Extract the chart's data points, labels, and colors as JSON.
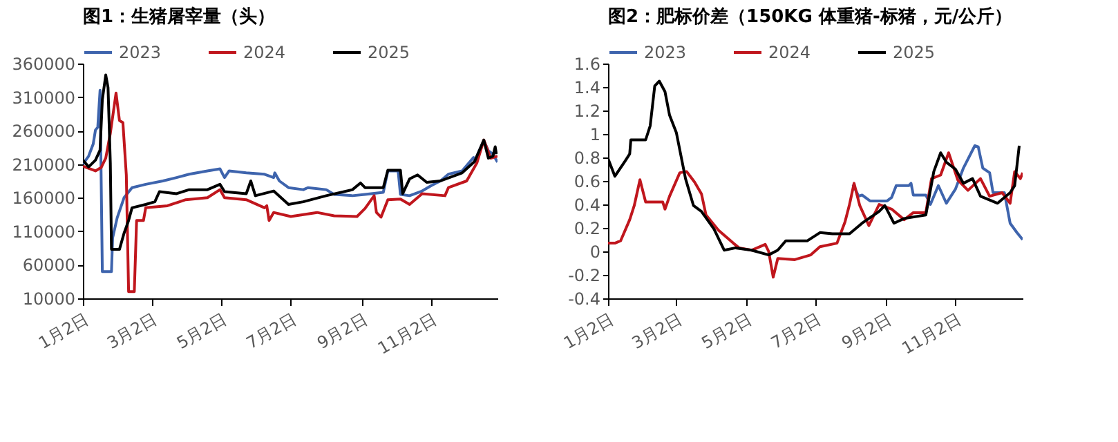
{
  "chart_data": [
    {
      "type": "line",
      "title": "图1：生猪屠宰量（头）",
      "legend": "top",
      "xlim": [
        "--01-02",
        "--12-30"
      ],
      "xticks": [
        {
          "value": "--01-02",
          "label": "1月2日"
        },
        {
          "value": "--03-02",
          "label": "3月2日"
        },
        {
          "value": "--05-02",
          "label": "5月2日"
        },
        {
          "value": "--07-02",
          "label": "7月2日"
        },
        {
          "value": "--09-02",
          "label": "9月2日"
        },
        {
          "value": "--11-02",
          "label": "11月2日"
        }
      ],
      "ylim": [
        10000,
        360000
      ],
      "yticks": [
        10000,
        60000,
        110000,
        160000,
        210000,
        260000,
        310000,
        360000
      ],
      "series": [
        {
          "name": "2023",
          "color": "#3e64ad",
          "x": [
            "--01-02",
            "--01-07",
            "--01-11",
            "--01-13",
            "--01-15",
            "--01-17",
            "--01-19",
            "--01-27",
            "--01-28",
            "--02-01",
            "--02-07",
            "--02-14",
            "--02-26",
            "--03-12",
            "--03-24",
            "--04-04",
            "--04-20",
            "--05-01",
            "--05-05",
            "--05-09",
            "--05-24",
            "--06-09",
            "--06-17",
            "--06-18",
            "--06-22",
            "--06-30",
            "--07-13",
            "--07-17",
            "--08-02",
            "--08-09",
            "--08-25",
            "--09-05",
            "--09-21",
            "--09-25",
            "--10-04",
            "--10-06",
            "--10-14",
            "--10-25",
            "--11-02",
            "--11-10",
            "--11-17",
            "--11-29",
            "--12-09",
            "--12-10",
            "--12-18",
            "--12-22",
            "--12-26",
            "--12-30"
          ],
          "values": [
            210000,
            222000,
            240000,
            261000,
            265000,
            320000,
            50000,
            50000,
            100000,
            130000,
            160000,
            175000,
            180000,
            185000,
            190000,
            195000,
            200000,
            203000,
            190000,
            200000,
            197000,
            195000,
            190000,
            197000,
            185000,
            175000,
            172000,
            175000,
            172000,
            165000,
            163000,
            165000,
            168000,
            200000,
            200000,
            165000,
            163000,
            170000,
            178000,
            185000,
            195000,
            200000,
            220000,
            215000,
            245000,
            230000,
            225000,
            213000
          ]
        },
        {
          "name": "2024",
          "color": "#c0161d",
          "x": [
            "--01-02",
            "--01-13",
            "--01-18",
            "--01-22",
            "--01-26",
            "--01-31",
            "--02-03",
            "--02-06",
            "--02-09",
            "--02-11",
            "--02-16",
            "--02-18",
            "--02-24",
            "--02-26",
            "--03-16",
            "--04-01",
            "--04-20",
            "--05-01",
            "--05-05",
            "--05-24",
            "--06-09",
            "--06-11",
            "--06-13",
            "--06-17",
            "--07-02",
            "--07-25",
            "--08-09",
            "--08-29",
            "--09-05",
            "--09-13",
            "--09-15",
            "--09-19",
            "--09-25",
            "--10-06",
            "--10-14",
            "--10-25",
            "--11-14",
            "--11-17",
            "--12-03",
            "--12-12",
            "--12-18",
            "--12-24",
            "--12-30"
          ],
          "values": [
            207000,
            200000,
            205000,
            219000,
            256000,
            316000,
            275000,
            272000,
            194000,
            20000,
            20000,
            126000,
            126000,
            145000,
            148000,
            157000,
            160000,
            172000,
            160000,
            157000,
            145000,
            148000,
            126000,
            138000,
            132000,
            138000,
            133000,
            132000,
            144000,
            163000,
            138000,
            131000,
            157000,
            158000,
            150000,
            166000,
            163000,
            175000,
            185000,
            212000,
            246000,
            219000,
            222000
          ]
        },
        {
          "name": "2025",
          "color": "#000000",
          "x": [
            "--01-02",
            "--01-07",
            "--01-13",
            "--01-17",
            "--01-19",
            "--01-22",
            "--01-24",
            "--01-26",
            "--01-27",
            "--02-03",
            "--02-07",
            "--02-11",
            "--02-14",
            "--02-26",
            "--03-05",
            "--03-09",
            "--03-24",
            "--04-04",
            "--04-20",
            "--05-01",
            "--05-05",
            "--05-24",
            "--05-28",
            "--06-01",
            "--06-17",
            "--06-30",
            "--07-13",
            "--08-02",
            "--08-25",
            "--09-01",
            "--09-05",
            "--09-21",
            "--09-25",
            "--10-06",
            "--10-08",
            "--10-14",
            "--10-21",
            "--10-29",
            "--11-10",
            "--11-29",
            "--12-10",
            "--12-18",
            "--12-22",
            "--12-26",
            "--12-28",
            "--12-29"
          ],
          "values": [
            216000,
            206000,
            216000,
            231000,
            306000,
            343000,
            324000,
            212000,
            83000,
            83000,
            107000,
            126000,
            145000,
            150000,
            154000,
            169000,
            166000,
            172000,
            172000,
            180000,
            169000,
            166000,
            185000,
            163000,
            170000,
            150000,
            154000,
            163000,
            172000,
            182000,
            175000,
            175000,
            201000,
            201000,
            166000,
            188000,
            194000,
            183000,
            185000,
            197000,
            214000,
            246000,
            219000,
            222000,
            236000,
            225000
          ]
        }
      ]
    },
    {
      "type": "line",
      "title": "图2：肥标价差（150KG 体重猪-标猪，元/公斤）",
      "legend": "top",
      "xlim": [
        "--01-02",
        "--12-31"
      ],
      "xticks": [
        {
          "value": "--01-02",
          "label": "1月2日"
        },
        {
          "value": "--03-02",
          "label": "3月2日"
        },
        {
          "value": "--05-02",
          "label": "5月2日"
        },
        {
          "value": "--07-02",
          "label": "7月2日"
        },
        {
          "value": "--09-02",
          "label": "9月2日"
        },
        {
          "value": "--11-02",
          "label": "11月2日"
        }
      ],
      "ylim": [
        -0.4,
        1.6
      ],
      "yticks": [
        -0.4,
        -0.2,
        0,
        0.2,
        0.4,
        0.6,
        0.8,
        1,
        1.2,
        1.4,
        1.6
      ],
      "series": [
        {
          "name": "2023",
          "color": "#3e64ad",
          "x": [
            "--08-04",
            "--08-09",
            "--08-12",
            "--08-19",
            "--08-27",
            "--09-03",
            "--09-07",
            "--09-11",
            "--09-22",
            "--09-24",
            "--09-26",
            "--10-07",
            "--10-11",
            "--10-18",
            "--10-25",
            "--11-02",
            "--11-09",
            "--11-19",
            "--11-22",
            "--11-26",
            "--12-02",
            "--12-05",
            "--12-15",
            "--12-20",
            "--12-26",
            "--12-31"
          ],
          "values": [
            0.57,
            0.47,
            0.48,
            0.43,
            0.43,
            0.43,
            0.46,
            0.56,
            0.56,
            0.58,
            0.48,
            0.48,
            0.4,
            0.56,
            0.41,
            0.53,
            0.71,
            0.9,
            0.89,
            0.71,
            0.67,
            0.5,
            0.5,
            0.24,
            0.16,
            0.1
          ]
        },
        {
          "name": "2024",
          "color": "#c0161d",
          "x": [
            "--01-02",
            "--01-08",
            "--01-13",
            "--01-21",
            "--01-25",
            "--01-30",
            "--02-04",
            "--02-19",
            "--02-21",
            "--02-25",
            "--03-05",
            "--03-11",
            "--03-18",
            "--03-24",
            "--03-28",
            "--04-08",
            "--04-21",
            "--04-26",
            "--05-07",
            "--05-19",
            "--05-22",
            "--05-26",
            "--05-30",
            "--06-14",
            "--06-28",
            "--07-06",
            "--07-21",
            "--07-28",
            "--08-01",
            "--08-05",
            "--08-10",
            "--08-18",
            "--08-27",
            "--09-07",
            "--09-18",
            "--09-26",
            "--10-07",
            "--10-12",
            "--10-20",
            "--10-27",
            "--11-04",
            "--11-13",
            "--11-24",
            "--12-02",
            "--12-13",
            "--12-20",
            "--12-24",
            "--12-29",
            "--12-31"
          ],
          "values": [
            0.07,
            0.07,
            0.09,
            0.27,
            0.39,
            0.61,
            0.42,
            0.42,
            0.36,
            0.47,
            0.67,
            0.68,
            0.59,
            0.49,
            0.31,
            0.18,
            0.07,
            0.03,
            0.01,
            0.06,
            0.0,
            -0.22,
            -0.06,
            -0.07,
            -0.03,
            0.04,
            0.07,
            0.25,
            0.4,
            0.58,
            0.39,
            0.22,
            0.4,
            0.36,
            0.27,
            0.33,
            0.33,
            0.62,
            0.65,
            0.84,
            0.61,
            0.52,
            0.62,
            0.47,
            0.5,
            0.41,
            0.68,
            0.62,
            0.67
          ]
        },
        {
          "name": "2025",
          "color": "#000000",
          "x": [
            "--01-02",
            "--01-08",
            "--01-17",
            "--01-21",
            "--01-22",
            "--02-04",
            "--02-08",
            "--02-12",
            "--02-16",
            "--02-21",
            "--02-25",
            "--03-02",
            "--03-10",
            "--03-17",
            "--03-24",
            "--04-04",
            "--04-13",
            "--04-23",
            "--05-07",
            "--05-22",
            "--05-30",
            "--06-06",
            "--06-14",
            "--06-25",
            "--07-06",
            "--07-17",
            "--08-01",
            "--08-12",
            "--08-27",
            "--09-01",
            "--09-09",
            "--09-18",
            "--10-07",
            "--10-14",
            "--10-20",
            "--10-25",
            "--11-02",
            "--11-09",
            "--11-17",
            "--11-24",
            "--12-09",
            "--12-20",
            "--12-24",
            "--12-28"
          ],
          "values": [
            0.79,
            0.64,
            0.77,
            0.83,
            0.95,
            0.95,
            1.07,
            1.41,
            1.45,
            1.36,
            1.16,
            1.01,
            0.62,
            0.39,
            0.34,
            0.19,
            0.01,
            0.03,
            0.01,
            -0.03,
            0.01,
            0.09,
            0.09,
            0.09,
            0.16,
            0.15,
            0.15,
            0.24,
            0.34,
            0.39,
            0.24,
            0.28,
            0.31,
            0.68,
            0.84,
            0.76,
            0.7,
            0.58,
            0.62,
            0.47,
            0.41,
            0.5,
            0.56,
            0.9
          ]
        }
      ]
    }
  ]
}
